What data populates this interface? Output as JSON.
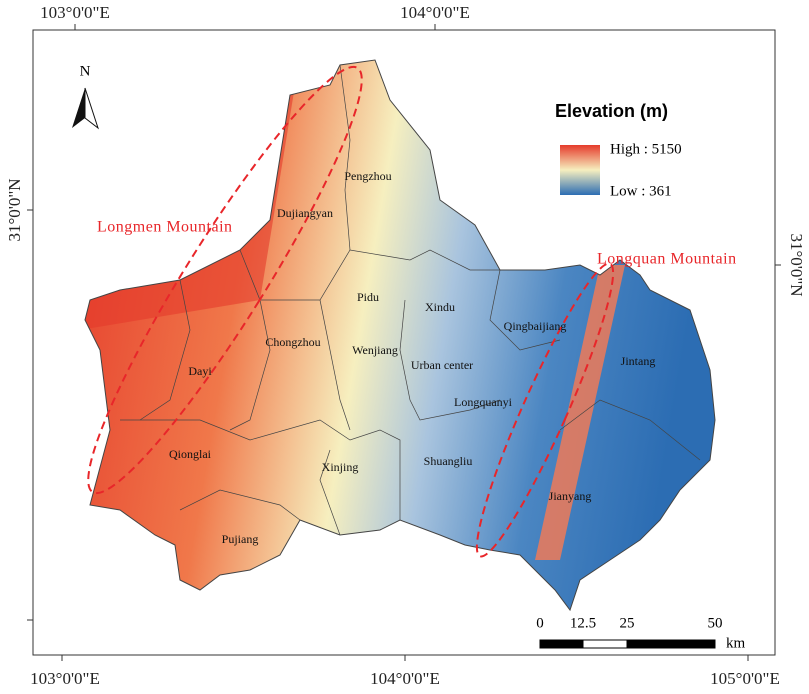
{
  "grid_labels": {
    "top": [
      "103°0'0\"E",
      "104°0'0\"E"
    ],
    "bottom": [
      "103°0'0\"E",
      "104°0'0\"E",
      "105°0'0\"E"
    ],
    "left": [
      "31°0'0\"N"
    ],
    "right": [
      "31°0'0\"N"
    ]
  },
  "north": "N",
  "legend": {
    "title": "Elevation (m)",
    "high": "High : 5150",
    "low": "Low : 361"
  },
  "mountains": [
    "Longmen  Mountain",
    "Longquan  Mountain"
  ],
  "districts": [
    "Pengzhou",
    "Dujiangyan",
    "Pidu",
    "Xindu",
    "Qingbaijiang",
    "Chongzhou",
    "Wenjiang",
    "Urban center",
    "Dayi",
    "Jintang",
    "Longquanyi",
    "Qionglai",
    "Xinjing",
    "Shuangliu",
    "Jianyang",
    "Pujiang"
  ],
  "scale_bar": {
    "labels": [
      0,
      12.5,
      25,
      50
    ],
    "unit": "km"
  }
}
